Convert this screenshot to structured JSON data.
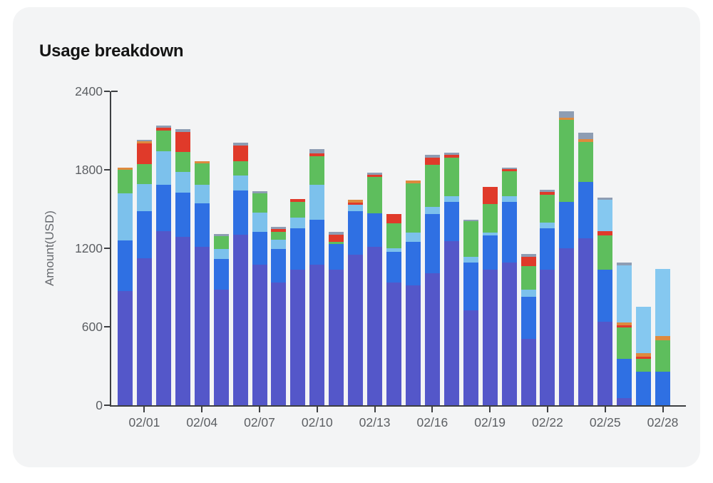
{
  "page": {
    "background": "#ffffff",
    "card_background": "#f3f4f5",
    "axis_color": "#3d3f42",
    "tick_label_color": "#5c5f63"
  },
  "chart_data": {
    "type": "bar",
    "stacked": true,
    "title": "Usage breakdown",
    "xlabel": "",
    "ylabel": "Amount(USD)",
    "ylim": [
      0,
      2400
    ],
    "yticks": [
      0,
      600,
      1200,
      1800,
      2400
    ],
    "grid": false,
    "legend": "none",
    "categories": [
      "01/31",
      "02/01",
      "02/02",
      "02/03",
      "02/04",
      "02/05",
      "02/06",
      "02/07",
      "02/08",
      "02/09",
      "02/10",
      "02/11",
      "02/12",
      "02/13",
      "02/14",
      "02/15",
      "02/16",
      "02/17",
      "02/18",
      "02/19",
      "02/20",
      "02/21",
      "02/22",
      "02/23",
      "02/24",
      "02/25",
      "02/26",
      "02/27",
      "02/28"
    ],
    "xtick_labels": [
      "02/01",
      "02/04",
      "02/07",
      "02/10",
      "02/13",
      "02/16",
      "02/19",
      "02/22",
      "02/25",
      "02/28"
    ],
    "xtick_first_index": 1,
    "xtick_step": 3,
    "series": [
      {
        "name": "indigo",
        "color": "#5457C9",
        "values": [
          875,
          1125,
          1333,
          1286,
          1210,
          883,
          1305,
          1073,
          937,
          1037,
          1073,
          1037,
          1152,
          1210,
          937,
          919,
          1010,
          1255,
          728,
          1037,
          1092,
          510,
          1037,
          1201,
          1274,
          637,
          55,
          0,
          0
        ]
      },
      {
        "name": "blue",
        "color": "#2F70E3",
        "values": [
          385,
          358,
          350,
          342,
          336,
          236,
          338,
          255,
          255,
          318,
          346,
          195,
          331,
          259,
          237,
          331,
          454,
          300,
          364,
          264,
          463,
          318,
          318,
          354,
          431,
          400,
          300,
          255,
          255
        ]
      },
      {
        "name": "sky",
        "color": "#7CC1EC",
        "values": [
          360,
          209,
          258,
          155,
          137,
          73,
          116,
          146,
          72,
          82,
          264,
          0,
          48,
          0,
          27,
          69,
          55,
          46,
          45,
          18,
          46,
          55,
          40,
          0,
          0,
          0,
          0,
          0,
          0
        ]
      },
      {
        "name": "green",
        "color": "#5EBE5D",
        "values": [
          180,
          154,
          160,
          151,
          167,
          100,
          105,
          145,
          64,
          118,
          222,
          18,
          0,
          279,
          191,
          378,
          318,
          294,
          268,
          218,
          191,
          182,
          215,
          628,
          309,
          261,
          240,
          97,
          243
        ]
      },
      {
        "name": "red",
        "color": "#E03A2A",
        "values": [
          0,
          155,
          20,
          158,
          0,
          0,
          124,
          0,
          22,
          22,
          23,
          55,
          20,
          15,
          71,
          0,
          58,
          21,
          0,
          131,
          12,
          72,
          22,
          0,
          0,
          32,
          18,
          18,
          0
        ]
      },
      {
        "name": "orange",
        "color": "#DE8A3E",
        "values": [
          19,
          15,
          0,
          0,
          18,
          0,
          0,
          0,
          0,
          0,
          0,
          0,
          22,
          0,
          0,
          22,
          0,
          0,
          0,
          0,
          0,
          0,
          0,
          18,
          18,
          0,
          18,
          27,
          33
        ]
      },
      {
        "name": "cyan",
        "color": "#85C8F0",
        "values": [
          0,
          0,
          0,
          0,
          0,
          0,
          0,
          0,
          0,
          0,
          0,
          0,
          0,
          0,
          0,
          0,
          0,
          0,
          0,
          0,
          0,
          0,
          0,
          0,
          0,
          240,
          440,
          358,
          509
        ]
      },
      {
        "name": "gray",
        "color": "#8E9DB3",
        "values": [
          0,
          16,
          16,
          18,
          0,
          18,
          18,
          15,
          14,
          0,
          31,
          23,
          0,
          14,
          0,
          0,
          18,
          16,
          14,
          0,
          15,
          18,
          18,
          49,
          51,
          19,
          22,
          0,
          0
        ]
      }
    ]
  }
}
